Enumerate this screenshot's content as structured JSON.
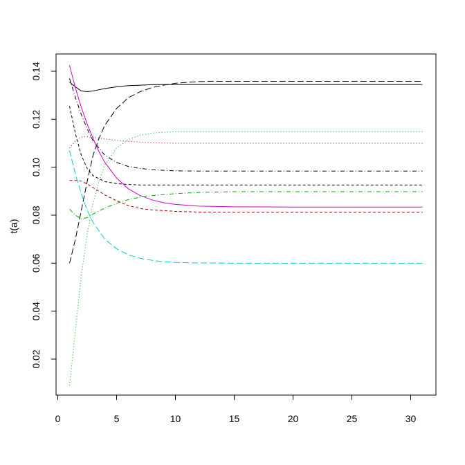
{
  "chart_data": {
    "type": "line",
    "title": "",
    "xlabel": "",
    "ylabel": "t(a)",
    "xlim": [
      0,
      32
    ],
    "ylim": [
      0.004,
      0.148
    ],
    "x_ticks": [
      0,
      5,
      10,
      15,
      20,
      25,
      30
    ],
    "y_ticks": [
      0.02,
      0.04,
      0.06,
      0.08,
      0.1,
      0.12,
      0.14
    ],
    "y_tick_labels": [
      "0.02",
      "0.04",
      "0.06",
      "0.08",
      "0.10",
      "0.12",
      "0.14"
    ],
    "grid": false,
    "legend": "none",
    "series": [
      {
        "color": "#000000",
        "linestyle": "solid",
        "x": [
          1,
          1.5,
          2,
          2.5,
          3,
          4,
          5,
          6,
          7,
          8,
          10,
          12,
          15,
          20,
          25,
          31
        ],
        "y": [
          0.1355,
          0.1335,
          0.1318,
          0.1315,
          0.1318,
          0.1328,
          0.1335,
          0.134,
          0.1342,
          0.1344,
          0.1345,
          0.1345,
          0.1345,
          0.1345,
          0.1345,
          0.1345
        ]
      },
      {
        "color": "#000000",
        "linestyle": "longdash",
        "x": [
          1,
          1.5,
          2,
          2.5,
          3,
          3.5,
          4,
          5,
          6,
          7,
          8,
          9,
          10,
          11,
          12,
          13,
          15,
          20,
          25,
          31
        ],
        "y": [
          0.06,
          0.07,
          0.082,
          0.094,
          0.105,
          0.112,
          0.1175,
          0.1245,
          0.129,
          0.1315,
          0.1332,
          0.1342,
          0.135,
          0.1354,
          0.1357,
          0.1358,
          0.1358,
          0.1358,
          0.1358,
          0.1358
        ]
      },
      {
        "color": "#000000",
        "linestyle": "dashdot",
        "x": [
          1,
          1.5,
          2,
          2.5,
          3,
          4,
          5,
          6,
          7,
          8,
          9,
          10,
          12,
          15,
          20,
          25,
          31
        ],
        "y": [
          0.137,
          0.129,
          0.122,
          0.116,
          0.111,
          0.105,
          0.102,
          0.1003,
          0.0995,
          0.099,
          0.0987,
          0.0985,
          0.0984,
          0.0984,
          0.0984,
          0.0984,
          0.0984
        ]
      },
      {
        "color": "#000000",
        "linestyle": "dashed",
        "x": [
          1,
          1.5,
          2,
          2.5,
          3,
          4,
          5,
          6,
          7,
          8,
          10,
          15,
          20,
          25,
          31
        ],
        "y": [
          0.1255,
          0.114,
          0.105,
          0.0995,
          0.0965,
          0.094,
          0.0932,
          0.0928,
          0.0926,
          0.0926,
          0.0926,
          0.0926,
          0.0926,
          0.0926,
          0.0926
        ]
      },
      {
        "color": "#CC00CC",
        "linestyle": "solid",
        "x": [
          1,
          1.5,
          2,
          2.5,
          3,
          3.5,
          4,
          5,
          6,
          7,
          8,
          9,
          10,
          12,
          15,
          20,
          25,
          31
        ],
        "y": [
          0.1425,
          0.133,
          0.125,
          0.118,
          0.112,
          0.1065,
          0.102,
          0.0955,
          0.091,
          0.0882,
          0.0864,
          0.0852,
          0.0845,
          0.0838,
          0.0835,
          0.0834,
          0.0834,
          0.0834
        ]
      },
      {
        "color": "#00CCCC",
        "linestyle": "longdash",
        "x": [
          1,
          1.5,
          2,
          2.5,
          3,
          4,
          5,
          6,
          7,
          8,
          9,
          10,
          12,
          15,
          20,
          25,
          31
        ],
        "y": [
          0.107,
          0.097,
          0.089,
          0.082,
          0.077,
          0.07,
          0.066,
          0.0635,
          0.062,
          0.0612,
          0.0606,
          0.0603,
          0.0601,
          0.06,
          0.06,
          0.06,
          0.06
        ]
      },
      {
        "color": "#00AA00",
        "linestyle": "dotted",
        "x": [
          1,
          1.5,
          2,
          2.5,
          3,
          3.5,
          4,
          5,
          6,
          7,
          8,
          9,
          10,
          12,
          15,
          20,
          25,
          31
        ],
        "y": [
          0.009,
          0.032,
          0.055,
          0.072,
          0.085,
          0.094,
          0.101,
          0.108,
          0.1115,
          0.1133,
          0.1142,
          0.1146,
          0.1148,
          0.1148,
          0.1148,
          0.1148,
          0.1148,
          0.1148
        ]
      },
      {
        "color": "#00AA00",
        "linestyle": "dashdot",
        "x": [
          1,
          1.5,
          2,
          2.5,
          3,
          4,
          5,
          6,
          7,
          8,
          10,
          12,
          15,
          20,
          25,
          31
        ],
        "y": [
          0.0825,
          0.08,
          0.0785,
          0.079,
          0.0805,
          0.083,
          0.085,
          0.0865,
          0.0875,
          0.0882,
          0.089,
          0.0895,
          0.0898,
          0.0898,
          0.0898,
          0.0898
        ]
      },
      {
        "color": "#AA0000",
        "linestyle": "dotted",
        "x": [
          1,
          1.5,
          2,
          2.5,
          3,
          4,
          5,
          6,
          7,
          8,
          10,
          12,
          15,
          20,
          25,
          31
        ],
        "y": [
          0.108,
          0.111,
          0.1125,
          0.1128,
          0.1125,
          0.1118,
          0.1112,
          0.1108,
          0.1105,
          0.1102,
          0.11,
          0.11,
          0.11,
          0.11,
          0.11,
          0.11
        ]
      },
      {
        "color": "#AA0000",
        "linestyle": "dashed",
        "x": [
          1,
          1.5,
          2,
          2.5,
          3,
          4,
          5,
          6,
          7,
          8,
          10,
          12,
          15,
          20,
          25,
          31
        ],
        "y": [
          0.0945,
          0.0945,
          0.0942,
          0.093,
          0.0915,
          0.0885,
          0.086,
          0.084,
          0.0828,
          0.0822,
          0.0816,
          0.0813,
          0.0812,
          0.0812,
          0.0812,
          0.0812
        ]
      }
    ]
  }
}
